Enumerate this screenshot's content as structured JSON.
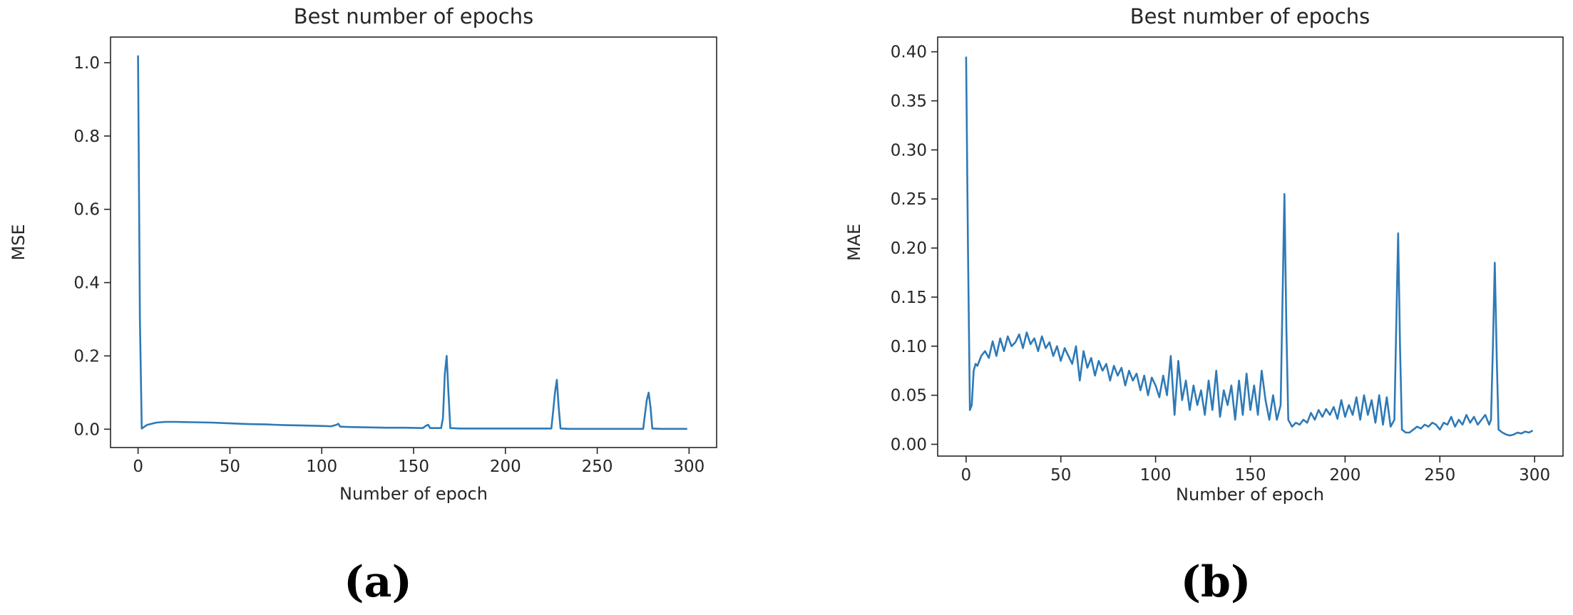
{
  "chart_data": [
    {
      "type": "line",
      "title": "Best number of epochs",
      "xlabel": "Number of epoch",
      "ylabel": "MSE",
      "panel_label": "(a)",
      "xlim": [
        -15,
        315
      ],
      "ylim": [
        -0.05,
        1.07
      ],
      "xticks": [
        0,
        50,
        100,
        150,
        200,
        250,
        300
      ],
      "xtick_labels": [
        "0",
        "50",
        "100",
        "150",
        "200",
        "250",
        "300"
      ],
      "yticks": [
        0.0,
        0.2,
        0.4,
        0.6,
        0.8,
        1.0
      ],
      "ytick_labels": [
        "0.0",
        "0.2",
        "0.4",
        "0.6",
        "0.8",
        "1.0"
      ],
      "grid": false,
      "color": "#2e7ab7",
      "series": [
        {
          "x": [
            0,
            1,
            2,
            5,
            10,
            15,
            20,
            30,
            40,
            50,
            60,
            70,
            80,
            90,
            100,
            105,
            108,
            109,
            110,
            115,
            125,
            135,
            145,
            155,
            157,
            158,
            159,
            160,
            165,
            166,
            167,
            168,
            169,
            170,
            175,
            185,
            195,
            205,
            215,
            225,
            226,
            227,
            228,
            229,
            230,
            235,
            245,
            255,
            265,
            275,
            276,
            277,
            278,
            279,
            280,
            285,
            290,
            299
          ],
          "y": [
            1.02,
            0.3,
            0.002,
            0.012,
            0.018,
            0.02,
            0.02,
            0.019,
            0.018,
            0.016,
            0.014,
            0.013,
            0.011,
            0.01,
            0.009,
            0.008,
            0.012,
            0.015,
            0.007,
            0.006,
            0.005,
            0.004,
            0.004,
            0.003,
            0.01,
            0.012,
            0.003,
            0.003,
            0.003,
            0.03,
            0.15,
            0.2,
            0.1,
            0.003,
            0.002,
            0.002,
            0.002,
            0.002,
            0.002,
            0.002,
            0.05,
            0.1,
            0.135,
            0.06,
            0.002,
            0.001,
            0.001,
            0.001,
            0.001,
            0.001,
            0.04,
            0.08,
            0.1,
            0.06,
            0.002,
            0.001,
            0.001,
            0.001
          ]
        }
      ]
    },
    {
      "type": "line",
      "title": "Best number of epochs",
      "xlabel": "Number of epoch",
      "ylabel": "MAE",
      "panel_label": "(b)",
      "xlim": [
        -15,
        315
      ],
      "ylim": [
        -0.012,
        0.415
      ],
      "xticks": [
        0,
        50,
        100,
        150,
        200,
        250,
        300
      ],
      "xtick_labels": [
        "0",
        "50",
        "100",
        "150",
        "200",
        "250",
        "300"
      ],
      "yticks": [
        0.0,
        0.05,
        0.1,
        0.15,
        0.2,
        0.25,
        0.3,
        0.35,
        0.4
      ],
      "ytick_labels": [
        "0.00",
        "0.05",
        "0.10",
        "0.15",
        "0.20",
        "0.25",
        "0.30",
        "0.35",
        "0.40"
      ],
      "grid": false,
      "color": "#2e7ab7",
      "series": [
        {
          "x": [
            0,
            1,
            2,
            3,
            4,
            5,
            6,
            8,
            10,
            12,
            14,
            16,
            18,
            20,
            22,
            24,
            26,
            28,
            30,
            32,
            34,
            36,
            38,
            40,
            42,
            44,
            46,
            48,
            50,
            52,
            54,
            56,
            58,
            60,
            62,
            64,
            66,
            68,
            70,
            72,
            74,
            76,
            78,
            80,
            82,
            84,
            86,
            88,
            90,
            92,
            94,
            96,
            98,
            100,
            102,
            104,
            106,
            108,
            110,
            112,
            114,
            116,
            118,
            120,
            122,
            124,
            126,
            128,
            130,
            132,
            134,
            136,
            138,
            140,
            142,
            144,
            146,
            148,
            150,
            152,
            154,
            156,
            158,
            160,
            162,
            164,
            166,
            167,
            168,
            169,
            170,
            172,
            174,
            176,
            178,
            180,
            182,
            184,
            186,
            188,
            190,
            192,
            194,
            196,
            198,
            200,
            202,
            204,
            206,
            208,
            210,
            212,
            214,
            216,
            218,
            220,
            222,
            224,
            226,
            227,
            228,
            229,
            230,
            232,
            234,
            236,
            238,
            240,
            242,
            244,
            246,
            248,
            250,
            252,
            254,
            256,
            258,
            260,
            262,
            264,
            266,
            268,
            270,
            272,
            274,
            276,
            277,
            278,
            279,
            280,
            281,
            283,
            285,
            287,
            289,
            291,
            293,
            295,
            297,
            299
          ],
          "y": [
            0.395,
            0.2,
            0.035,
            0.04,
            0.075,
            0.082,
            0.08,
            0.09,
            0.095,
            0.088,
            0.105,
            0.09,
            0.108,
            0.095,
            0.11,
            0.1,
            0.104,
            0.112,
            0.098,
            0.114,
            0.102,
            0.108,
            0.095,
            0.11,
            0.098,
            0.104,
            0.09,
            0.1,
            0.085,
            0.098,
            0.09,
            0.082,
            0.1,
            0.065,
            0.095,
            0.078,
            0.088,
            0.07,
            0.085,
            0.075,
            0.082,
            0.065,
            0.08,
            0.07,
            0.078,
            0.06,
            0.075,
            0.065,
            0.072,
            0.055,
            0.07,
            0.05,
            0.068,
            0.06,
            0.048,
            0.07,
            0.05,
            0.09,
            0.03,
            0.085,
            0.045,
            0.065,
            0.035,
            0.06,
            0.04,
            0.055,
            0.03,
            0.065,
            0.035,
            0.075,
            0.028,
            0.055,
            0.04,
            0.06,
            0.025,
            0.065,
            0.03,
            0.072,
            0.035,
            0.06,
            0.03,
            0.075,
            0.045,
            0.025,
            0.05,
            0.025,
            0.04,
            0.15,
            0.255,
            0.12,
            0.025,
            0.018,
            0.022,
            0.02,
            0.025,
            0.022,
            0.032,
            0.025,
            0.035,
            0.028,
            0.036,
            0.03,
            0.038,
            0.026,
            0.045,
            0.028,
            0.04,
            0.03,
            0.048,
            0.025,
            0.05,
            0.03,
            0.045,
            0.022,
            0.05,
            0.02,
            0.048,
            0.018,
            0.025,
            0.12,
            0.215,
            0.1,
            0.015,
            0.012,
            0.012,
            0.015,
            0.018,
            0.016,
            0.02,
            0.018,
            0.022,
            0.02,
            0.015,
            0.022,
            0.02,
            0.028,
            0.018,
            0.025,
            0.02,
            0.03,
            0.022,
            0.028,
            0.02,
            0.025,
            0.03,
            0.02,
            0.025,
            0.1,
            0.185,
            0.09,
            0.015,
            0.012,
            0.01,
            0.009,
            0.01,
            0.012,
            0.011,
            0.013,
            0.012,
            0.014
          ]
        }
      ]
    }
  ]
}
